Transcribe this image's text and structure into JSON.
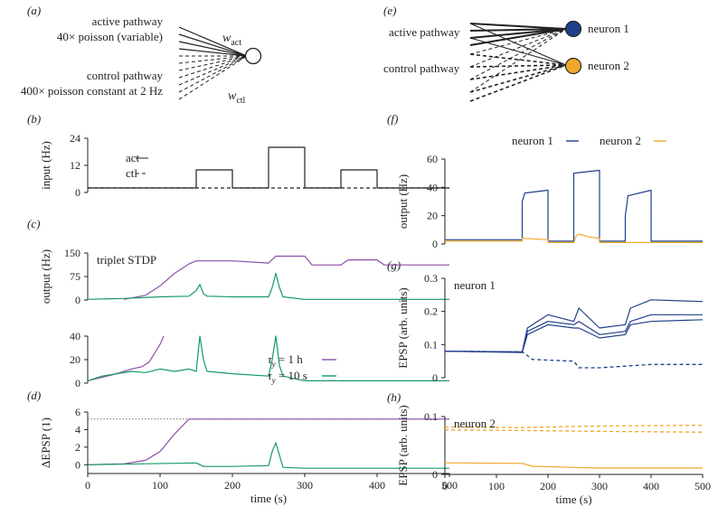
{
  "figure": {
    "panel_labels": [
      "(a)",
      "(b)",
      "(c)",
      "(d)",
      "(e)",
      "(f)",
      "(g)",
      "(h)"
    ],
    "colors": {
      "purple": "#8c4fa8",
      "green": "#159a62",
      "blue": "#1f3f8a",
      "orange": "#f0a829",
      "black": "#222222"
    }
  },
  "panel_a": {
    "active_line1": "active pathway",
    "active_line2": "40× poisson (variable)",
    "control_line1": "control pathway",
    "control_line2": "400× poisson constant at 2 Hz",
    "w_act": "w",
    "w_act_sub": "act",
    "w_ctl": "w",
    "w_ctl_sub": "ctl"
  },
  "panel_e": {
    "active": "active pathway",
    "control": "control pathway",
    "neuron1": "neuron 1",
    "neuron2": "neuron 2"
  },
  "chart_data": [
    {
      "id": "b",
      "type": "line",
      "ylabel": "input (Hz)",
      "ylim": [
        0,
        24
      ],
      "yticks": [
        0,
        12,
        24
      ],
      "xlim": [
        0,
        500
      ],
      "legend": [
        {
          "name": "act",
          "style": "solid"
        },
        {
          "name": "ctl",
          "style": "dashed"
        }
      ],
      "series": [
        {
          "name": "act",
          "style": "solid",
          "x": [
            0,
            150,
            150,
            200,
            200,
            250,
            250,
            300,
            300,
            350,
            350,
            400,
            400,
            500
          ],
          "y": [
            2,
            2,
            10,
            10,
            2,
            2,
            20,
            20,
            2,
            2,
            10,
            10,
            2,
            2
          ]
        },
        {
          "name": "ctl",
          "style": "dashed",
          "x": [
            0,
            500
          ],
          "y": [
            2,
            2
          ]
        }
      ]
    },
    {
      "id": "c_top",
      "type": "line",
      "ylabel": "output (Hz)",
      "annotation": "triplet STDP",
      "ylim": [
        0,
        150
      ],
      "yticks": [
        0,
        75,
        150
      ],
      "xlim": [
        0,
        500
      ],
      "series": [
        {
          "name": "τy = 1 h",
          "color": "purple",
          "x": [
            50,
            80,
            100,
            120,
            140,
            150,
            200,
            250,
            260,
            300,
            310,
            350,
            360,
            400,
            410,
            500
          ],
          "y": [
            2,
            15,
            45,
            85,
            115,
            125,
            125,
            118,
            140,
            140,
            112,
            112,
            128,
            128,
            112,
            112
          ]
        },
        {
          "name": "τy = 10 s",
          "color": "green",
          "x": [
            0,
            50,
            100,
            140,
            150,
            155,
            160,
            165,
            200,
            250,
            255,
            260,
            265,
            270,
            300,
            500
          ],
          "y": [
            2,
            5,
            10,
            12,
            30,
            50,
            20,
            12,
            10,
            10,
            40,
            85,
            40,
            10,
            2,
            2
          ]
        }
      ]
    },
    {
      "id": "c_bottom",
      "type": "line",
      "ylim": [
        0,
        40
      ],
      "yticks": [
        0,
        20,
        40
      ],
      "xlim": [
        0,
        500
      ],
      "legend": [
        {
          "name": "τy = 1 h",
          "tau": "τ",
          "sub": "y",
          "rest": "= 1 h",
          "color": "purple"
        },
        {
          "name": "τy = 10 s",
          "tau": "τ",
          "sub": "y",
          "rest": "= 10 s",
          "color": "green"
        }
      ],
      "series": [
        {
          "name": "τy = 1 h",
          "color": "purple",
          "x": [
            0,
            40,
            60,
            75,
            85,
            95,
            100,
            105
          ],
          "y": [
            2,
            8,
            12,
            14,
            18,
            28,
            33,
            40
          ]
        },
        {
          "name": "τy = 10 s",
          "color": "green",
          "x": [
            0,
            20,
            40,
            60,
            80,
            100,
            120,
            140,
            150,
            155,
            160,
            165,
            200,
            250,
            255,
            260,
            265,
            270,
            300,
            500
          ],
          "y": [
            2,
            6,
            8,
            10,
            9,
            12,
            10,
            12,
            10,
            40,
            20,
            10,
            8,
            6,
            20,
            40,
            15,
            6,
            2,
            2
          ]
        }
      ]
    },
    {
      "id": "d",
      "type": "line",
      "ylabel": "ΔEPSP (1)",
      "ylim": [
        -1,
        6
      ],
      "yticks": [
        0,
        2,
        4,
        6
      ],
      "xlim": [
        0,
        500
      ],
      "xticks": [
        0,
        100,
        200,
        300,
        400,
        500
      ],
      "xlabel": "time (s)",
      "reference_line": 5.2,
      "series": [
        {
          "name": "τy = 1 h",
          "color": "purple",
          "x": [
            0,
            50,
            80,
            100,
            120,
            140,
            150,
            500
          ],
          "y": [
            0,
            0.1,
            0.5,
            1.5,
            3.5,
            5.2,
            5.2,
            5.2
          ]
        },
        {
          "name": "τy = 10 s",
          "color": "green",
          "x": [
            0,
            150,
            160,
            200,
            250,
            255,
            260,
            270,
            300,
            500
          ],
          "y": [
            0,
            0.2,
            -0.2,
            -0.2,
            -0.1,
            1.5,
            2.5,
            -0.3,
            -0.4,
            -0.4
          ]
        }
      ]
    },
    {
      "id": "f",
      "type": "line",
      "ylabel": "output (Hz)",
      "ylim": [
        0,
        60
      ],
      "yticks": [
        0,
        20,
        40,
        60
      ],
      "xlim": [
        0,
        500
      ],
      "legend": [
        {
          "name": "neuron 1",
          "color": "blue"
        },
        {
          "name": "neuron 2",
          "color": "orange"
        }
      ],
      "series": [
        {
          "name": "neuron 1",
          "color": "blue",
          "x": [
            0,
            150,
            150,
            155,
            200,
            200,
            250,
            250,
            300,
            300,
            350,
            350,
            355,
            400,
            400,
            500
          ],
          "y": [
            3,
            3,
            30,
            36,
            38,
            2,
            2,
            50,
            52,
            2,
            2,
            20,
            34,
            38,
            2,
            2
          ]
        },
        {
          "name": "neuron 2",
          "color": "orange",
          "x": [
            0,
            150,
            150,
            200,
            200,
            250,
            255,
            260,
            280,
            300,
            300,
            350,
            400,
            500
          ],
          "y": [
            2,
            2,
            4,
            3,
            1,
            1,
            6,
            7,
            5,
            4,
            1,
            1,
            1,
            1
          ]
        }
      ]
    },
    {
      "id": "g",
      "type": "line",
      "ylabel": "EPSP (arb. units)",
      "annotation": "neuron 1",
      "ylim": [
        0,
        0.3
      ],
      "yticks": [
        0,
        0.1,
        0.2,
        0.3
      ],
      "xlim": [
        0,
        500
      ],
      "series": [
        {
          "name": "neuron 1 active (high)",
          "color": "blue",
          "style": "solid",
          "x": [
            0,
            150,
            160,
            200,
            250,
            260,
            300,
            350,
            360,
            400,
            500
          ],
          "y": [
            0.08,
            0.078,
            0.15,
            0.19,
            0.17,
            0.21,
            0.15,
            0.16,
            0.21,
            0.235,
            0.23
          ]
        },
        {
          "name": "neuron 1 active (mid)",
          "color": "blue",
          "style": "solid",
          "x": [
            0,
            150,
            160,
            200,
            250,
            260,
            300,
            350,
            360,
            400,
            500
          ],
          "y": [
            0.08,
            0.077,
            0.14,
            0.17,
            0.16,
            0.17,
            0.13,
            0.14,
            0.17,
            0.19,
            0.19
          ]
        },
        {
          "name": "neuron 1 active (low)",
          "color": "blue",
          "style": "solid",
          "x": [
            0,
            150,
            160,
            200,
            250,
            260,
            300,
            350,
            360,
            400,
            500
          ],
          "y": [
            0.08,
            0.076,
            0.13,
            0.16,
            0.15,
            0.15,
            0.12,
            0.13,
            0.16,
            0.17,
            0.175
          ]
        },
        {
          "name": "neuron 1 control",
          "color": "blue",
          "style": "dashed",
          "x": [
            0,
            150,
            170,
            250,
            260,
            300,
            350,
            400,
            500
          ],
          "y": [
            0.08,
            0.078,
            0.055,
            0.05,
            0.03,
            0.03,
            0.035,
            0.04,
            0.04
          ]
        }
      ]
    },
    {
      "id": "h",
      "type": "line",
      "ylabel": "EPSP (arb. units)",
      "annotation": "neuron 2",
      "ylim": [
        0,
        0.1
      ],
      "yticks": [
        0,
        0.1
      ],
      "xlim": [
        0,
        500
      ],
      "xticks": [
        0,
        100,
        200,
        300,
        400,
        500
      ],
      "xlabel": "time (s)",
      "series": [
        {
          "name": "neuron 2 control (upper)",
          "color": "orange",
          "style": "dashed",
          "x": [
            0,
            150,
            250,
            350,
            500
          ],
          "y": [
            0.082,
            0.081,
            0.083,
            0.084,
            0.085
          ]
        },
        {
          "name": "neuron 2 control (lower)",
          "color": "orange",
          "style": "dashed",
          "x": [
            0,
            150,
            250,
            350,
            500
          ],
          "y": [
            0.077,
            0.076,
            0.075,
            0.074,
            0.073
          ]
        },
        {
          "name": "neuron 2 active",
          "color": "orange",
          "style": "solid",
          "x": [
            0,
            150,
            170,
            250,
            300,
            500
          ],
          "y": [
            0.02,
            0.019,
            0.014,
            0.012,
            0.011,
            0.011
          ]
        }
      ]
    }
  ]
}
